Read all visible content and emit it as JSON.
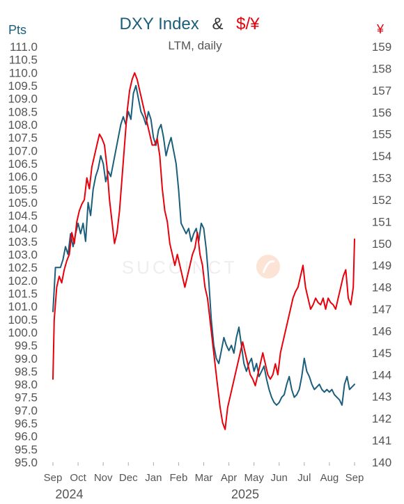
{
  "chart_data": {
    "type": "line",
    "title_parts": [
      {
        "text": "DXY Index",
        "color": "#1b5e7b"
      },
      {
        "text": "&",
        "color": "#333333"
      },
      {
        "text": "$/¥",
        "color": "#e8000b"
      }
    ],
    "subtitle": "LTM, daily",
    "left_unit": "Pts",
    "right_unit": "¥",
    "left_axis": {
      "min": 95.0,
      "max": 111.0,
      "step": 0.5,
      "ticks": [
        "95.0",
        "95.5",
        "96.0",
        "96.5",
        "97.0",
        "97.5",
        "98.0",
        "98.5",
        "99.0",
        "99.5",
        "100.0",
        "100.5",
        "101.0",
        "101.5",
        "102.0",
        "102.5",
        "103.0",
        "103.5",
        "104.0",
        "104.5",
        "105.0",
        "105.5",
        "106.0",
        "106.5",
        "107.0",
        "107.5",
        "108.0",
        "108.5",
        "109.0",
        "109.5",
        "110.0",
        "110.5",
        "111.0"
      ]
    },
    "right_axis": {
      "min": 140,
      "max": 159,
      "step": 1,
      "ticks": [
        "140",
        "141",
        "142",
        "143",
        "144",
        "145",
        "146",
        "147",
        "148",
        "149",
        "150",
        "151",
        "152",
        "153",
        "154",
        "155",
        "156",
        "157",
        "158",
        "159"
      ]
    },
    "x_months": [
      "Sep",
      "Oct",
      "Nov",
      "Dec",
      "Jan",
      "Feb",
      "Mar",
      "Apr",
      "May",
      "Jun",
      "Jul",
      "Aug",
      "Sep"
    ],
    "x_years": [
      {
        "label": "2024",
        "month_index": 0
      },
      {
        "label": "2025",
        "month_index": 7
      }
    ],
    "grid": false,
    "watermark": "SUCCINCT",
    "series": [
      {
        "name": "DXY Index",
        "axis": "left",
        "color": "#1b5e7b",
        "points": [
          [
            0.0,
            100.8
          ],
          [
            0.1,
            102.5
          ],
          [
            0.2,
            102.5
          ],
          [
            0.3,
            102.5
          ],
          [
            0.4,
            102.8
          ],
          [
            0.5,
            103.3
          ],
          [
            0.6,
            103.0
          ],
          [
            0.7,
            103.8
          ],
          [
            0.8,
            103.3
          ],
          [
            0.9,
            103.8
          ],
          [
            1.0,
            104.2
          ],
          [
            1.1,
            103.8
          ],
          [
            1.2,
            104.2
          ],
          [
            1.3,
            103.5
          ],
          [
            1.4,
            105.0
          ],
          [
            1.5,
            104.5
          ],
          [
            1.6,
            105.5
          ],
          [
            1.7,
            106.0
          ],
          [
            1.8,
            106.3
          ],
          [
            1.9,
            106.8
          ],
          [
            2.0,
            106.5
          ],
          [
            2.1,
            105.8
          ],
          [
            2.2,
            106.2
          ],
          [
            2.3,
            106.0
          ],
          [
            2.4,
            106.5
          ],
          [
            2.5,
            107.0
          ],
          [
            2.6,
            107.5
          ],
          [
            2.7,
            108.0
          ],
          [
            2.8,
            108.3
          ],
          [
            2.9,
            108.0
          ],
          [
            3.0,
            108.5
          ],
          [
            3.1,
            108.2
          ],
          [
            3.2,
            109.2
          ],
          [
            3.3,
            109.5
          ],
          [
            3.4,
            109.0
          ],
          [
            3.5,
            108.5
          ],
          [
            3.6,
            108.3
          ],
          [
            3.7,
            108.0
          ],
          [
            3.8,
            108.5
          ],
          [
            3.9,
            108.2
          ],
          [
            4.0,
            107.5
          ],
          [
            4.1,
            107.2
          ],
          [
            4.2,
            107.8
          ],
          [
            4.3,
            108.0
          ],
          [
            4.4,
            107.5
          ],
          [
            4.5,
            106.8
          ],
          [
            4.6,
            107.2
          ],
          [
            4.7,
            107.5
          ],
          [
            4.8,
            107.0
          ],
          [
            4.9,
            106.5
          ],
          [
            5.0,
            105.5
          ],
          [
            5.1,
            104.2
          ],
          [
            5.2,
            104.0
          ],
          [
            5.3,
            103.8
          ],
          [
            5.4,
            104.0
          ],
          [
            5.5,
            103.5
          ],
          [
            5.6,
            103.8
          ],
          [
            5.7,
            104.0
          ],
          [
            5.8,
            103.5
          ],
          [
            5.9,
            104.2
          ],
          [
            6.0,
            104.0
          ],
          [
            6.1,
            103.2
          ],
          [
            6.2,
            102.0
          ],
          [
            6.3,
            100.5
          ],
          [
            6.4,
            99.5
          ],
          [
            6.5,
            99.0
          ],
          [
            6.6,
            98.8
          ],
          [
            6.7,
            99.3
          ],
          [
            6.8,
            99.8
          ],
          [
            6.9,
            99.5
          ],
          [
            7.0,
            99.3
          ],
          [
            7.1,
            99.5
          ],
          [
            7.2,
            99.2
          ],
          [
            7.3,
            99.8
          ],
          [
            7.4,
            100.2
          ],
          [
            7.5,
            99.5
          ],
          [
            7.6,
            98.8
          ],
          [
            7.7,
            98.5
          ],
          [
            7.8,
            98.8
          ],
          [
            7.9,
            99.0
          ],
          [
            8.0,
            98.5
          ],
          [
            8.1,
            98.8
          ],
          [
            8.2,
            98.3
          ],
          [
            8.3,
            98.5
          ],
          [
            8.4,
            98.7
          ],
          [
            8.5,
            98.2
          ],
          [
            8.6,
            97.8
          ],
          [
            8.7,
            97.5
          ],
          [
            8.8,
            97.3
          ],
          [
            8.9,
            97.2
          ],
          [
            9.0,
            97.3
          ],
          [
            9.1,
            97.5
          ],
          [
            9.2,
            97.6
          ],
          [
            9.3,
            98.0
          ],
          [
            9.4,
            98.3
          ],
          [
            9.5,
            97.8
          ],
          [
            9.6,
            97.5
          ],
          [
            9.7,
            97.6
          ],
          [
            9.8,
            97.8
          ],
          [
            9.9,
            98.3
          ],
          [
            10.0,
            99.0
          ],
          [
            10.1,
            98.5
          ],
          [
            10.2,
            98.3
          ],
          [
            10.3,
            98.0
          ],
          [
            10.4,
            97.8
          ],
          [
            10.5,
            97.9
          ],
          [
            10.6,
            98.0
          ],
          [
            10.7,
            97.8
          ],
          [
            10.8,
            97.7
          ],
          [
            10.9,
            97.8
          ],
          [
            11.0,
            97.7
          ],
          [
            11.1,
            97.8
          ],
          [
            11.2,
            97.6
          ],
          [
            11.3,
            97.5
          ],
          [
            11.4,
            97.4
          ],
          [
            11.5,
            97.2
          ],
          [
            11.6,
            98.0
          ],
          [
            11.7,
            98.3
          ],
          [
            11.8,
            97.8
          ],
          [
            11.9,
            97.9
          ],
          [
            12.0,
            98.0
          ]
        ]
      },
      {
        "name": "$/¥",
        "axis": "right",
        "color": "#e8000b",
        "points": [
          [
            0.0,
            143.8
          ],
          [
            0.05,
            146.5
          ],
          [
            0.15,
            148.0
          ],
          [
            0.25,
            148.5
          ],
          [
            0.35,
            148.2
          ],
          [
            0.45,
            148.8
          ],
          [
            0.55,
            149.2
          ],
          [
            0.65,
            149.5
          ],
          [
            0.75,
            150.5
          ],
          [
            0.85,
            150.0
          ],
          [
            0.95,
            151.0
          ],
          [
            1.05,
            151.5
          ],
          [
            1.15,
            151.8
          ],
          [
            1.25,
            152.0
          ],
          [
            1.35,
            153.0
          ],
          [
            1.45,
            152.5
          ],
          [
            1.55,
            153.5
          ],
          [
            1.65,
            154.0
          ],
          [
            1.75,
            154.5
          ],
          [
            1.85,
            155.0
          ],
          [
            1.95,
            154.8
          ],
          [
            2.05,
            154.5
          ],
          [
            2.15,
            153.5
          ],
          [
            2.25,
            152.0
          ],
          [
            2.35,
            151.0
          ],
          [
            2.45,
            150.0
          ],
          [
            2.55,
            150.5
          ],
          [
            2.65,
            151.5
          ],
          [
            2.75,
            153.0
          ],
          [
            2.85,
            154.5
          ],
          [
            2.95,
            156.0
          ],
          [
            3.05,
            157.0
          ],
          [
            3.15,
            157.5
          ],
          [
            3.25,
            157.8
          ],
          [
            3.35,
            157.5
          ],
          [
            3.45,
            157.0
          ],
          [
            3.55,
            156.5
          ],
          [
            3.65,
            156.0
          ],
          [
            3.75,
            155.5
          ],
          [
            3.85,
            155.0
          ],
          [
            3.95,
            154.5
          ],
          [
            4.05,
            154.5
          ],
          [
            4.15,
            154.8
          ],
          [
            4.25,
            154.0
          ],
          [
            4.35,
            152.5
          ],
          [
            4.45,
            151.5
          ],
          [
            4.55,
            151.0
          ],
          [
            4.65,
            150.0
          ],
          [
            4.75,
            149.5
          ],
          [
            4.85,
            149.0
          ],
          [
            4.95,
            149.5
          ],
          [
            5.05,
            149.0
          ],
          [
            5.15,
            148.5
          ],
          [
            5.25,
            148.0
          ],
          [
            5.35,
            148.5
          ],
          [
            5.45,
            149.0
          ],
          [
            5.55,
            149.5
          ],
          [
            5.65,
            149.8
          ],
          [
            5.75,
            150.5
          ],
          [
            5.85,
            149.5
          ],
          [
            5.95,
            149.0
          ],
          [
            6.05,
            148.0
          ],
          [
            6.15,
            147.5
          ],
          [
            6.25,
            146.5
          ],
          [
            6.35,
            145.5
          ],
          [
            6.45,
            144.5
          ],
          [
            6.55,
            143.5
          ],
          [
            6.65,
            142.5
          ],
          [
            6.75,
            141.8
          ],
          [
            6.85,
            141.5
          ],
          [
            6.95,
            142.5
          ],
          [
            7.05,
            143.0
          ],
          [
            7.15,
            143.5
          ],
          [
            7.25,
            144.0
          ],
          [
            7.35,
            144.5
          ],
          [
            7.45,
            145.0
          ],
          [
            7.55,
            145.5
          ],
          [
            7.65,
            145.0
          ],
          [
            7.75,
            144.5
          ],
          [
            7.85,
            144.0
          ],
          [
            7.95,
            143.8
          ],
          [
            8.05,
            143.5
          ],
          [
            8.15,
            144.0
          ],
          [
            8.25,
            144.5
          ],
          [
            8.35,
            145.0
          ],
          [
            8.45,
            144.5
          ],
          [
            8.55,
            144.0
          ],
          [
            8.65,
            143.8
          ],
          [
            8.75,
            144.0
          ],
          [
            8.85,
            144.5
          ],
          [
            8.95,
            144.0
          ],
          [
            9.05,
            145.0
          ],
          [
            9.15,
            145.5
          ],
          [
            9.25,
            146.0
          ],
          [
            9.35,
            146.5
          ],
          [
            9.45,
            147.0
          ],
          [
            9.55,
            147.5
          ],
          [
            9.65,
            147.8
          ],
          [
            9.75,
            148.0
          ],
          [
            9.85,
            148.5
          ],
          [
            9.95,
            149.0
          ],
          [
            10.05,
            148.0
          ],
          [
            10.15,
            147.5
          ],
          [
            10.25,
            147.0
          ],
          [
            10.35,
            147.2
          ],
          [
            10.45,
            147.5
          ],
          [
            10.55,
            147.3
          ],
          [
            10.65,
            147.2
          ],
          [
            10.75,
            147.5
          ],
          [
            10.85,
            147.0
          ],
          [
            10.95,
            147.5
          ],
          [
            11.05,
            147.3
          ],
          [
            11.15,
            147.2
          ],
          [
            11.25,
            147.0
          ],
          [
            11.35,
            147.5
          ],
          [
            11.45,
            148.0
          ],
          [
            11.55,
            148.5
          ],
          [
            11.65,
            148.8
          ],
          [
            11.75,
            147.5
          ],
          [
            11.85,
            147.2
          ],
          [
            11.95,
            148.0
          ],
          [
            12.0,
            150.2
          ]
        ]
      }
    ]
  }
}
